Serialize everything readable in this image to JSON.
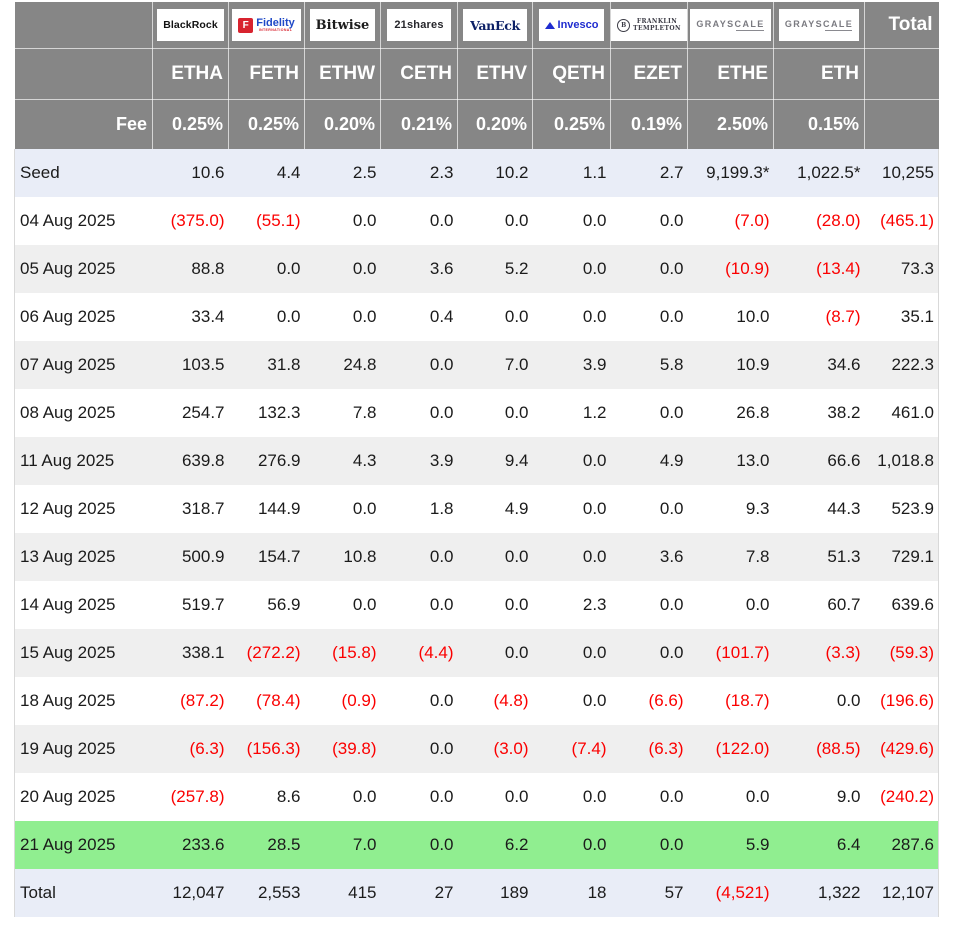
{
  "header": {
    "fee_label": "Fee",
    "total_label": "Total"
  },
  "columns": [
    {
      "provider": "BlackRock",
      "logo_text": "BlackRock",
      "ticker": "ETHA",
      "fee": "0.25%"
    },
    {
      "provider": "Fidelity",
      "logo_text": "Fidelity",
      "logo_initial": "F",
      "logo_sub": "INTERNATIONAL",
      "ticker": "FETH",
      "fee": "0.25%"
    },
    {
      "provider": "Bitwise",
      "logo_text": "Bitwise",
      "ticker": "ETHW",
      "fee": "0.20%"
    },
    {
      "provider": "21shares",
      "logo_text": "21shares",
      "ticker": "CETH",
      "fee": "0.21%"
    },
    {
      "provider": "VanEck",
      "logo_text": "VanEck",
      "ticker": "ETHV",
      "fee": "0.20%"
    },
    {
      "provider": "Invesco",
      "logo_text": "Invesco",
      "ticker": "QETH",
      "fee": "0.25%"
    },
    {
      "provider": "Franklin Templeton",
      "logo_line1": "FRANKLIN",
      "logo_line2": "TEMPLETON",
      "logo_seal": "B",
      "ticker": "EZET",
      "fee": "0.19%"
    },
    {
      "provider": "Grayscale",
      "logo_text": "GRAYSCALE",
      "ticker": "ETHE",
      "fee": "2.50%"
    },
    {
      "provider": "Grayscale",
      "logo_text": "GRAYSCALE",
      "ticker": "ETH",
      "fee": "0.15%"
    }
  ],
  "rows": [
    {
      "label": "Seed",
      "style": "seed",
      "values": [
        "10.6",
        "4.4",
        "2.5",
        "2.3",
        "10.2",
        "1.1",
        "2.7",
        "9,199.3*",
        "1,022.5*",
        "10,255"
      ]
    },
    {
      "label": "04 Aug 2025",
      "values": [
        "(375.0)",
        "(55.1)",
        "0.0",
        "0.0",
        "0.0",
        "0.0",
        "0.0",
        "(7.0)",
        "(28.0)",
        "(465.1)"
      ]
    },
    {
      "label": "05 Aug 2025",
      "values": [
        "88.8",
        "0.0",
        "0.0",
        "3.6",
        "5.2",
        "0.0",
        "0.0",
        "(10.9)",
        "(13.4)",
        "73.3"
      ]
    },
    {
      "label": "06 Aug 2025",
      "values": [
        "33.4",
        "0.0",
        "0.0",
        "0.4",
        "0.0",
        "0.0",
        "0.0",
        "10.0",
        "(8.7)",
        "35.1"
      ]
    },
    {
      "label": "07 Aug 2025",
      "values": [
        "103.5",
        "31.8",
        "24.8",
        "0.0",
        "7.0",
        "3.9",
        "5.8",
        "10.9",
        "34.6",
        "222.3"
      ]
    },
    {
      "label": "08 Aug 2025",
      "values": [
        "254.7",
        "132.3",
        "7.8",
        "0.0",
        "0.0",
        "1.2",
        "0.0",
        "26.8",
        "38.2",
        "461.0"
      ]
    },
    {
      "label": "11 Aug 2025",
      "values": [
        "639.8",
        "276.9",
        "4.3",
        "3.9",
        "9.4",
        "0.0",
        "4.9",
        "13.0",
        "66.6",
        "1,018.8"
      ]
    },
    {
      "label": "12 Aug 2025",
      "values": [
        "318.7",
        "144.9",
        "0.0",
        "1.8",
        "4.9",
        "0.0",
        "0.0",
        "9.3",
        "44.3",
        "523.9"
      ]
    },
    {
      "label": "13 Aug 2025",
      "values": [
        "500.9",
        "154.7",
        "10.8",
        "0.0",
        "0.0",
        "0.0",
        "3.6",
        "7.8",
        "51.3",
        "729.1"
      ]
    },
    {
      "label": "14 Aug 2025",
      "values": [
        "519.7",
        "56.9",
        "0.0",
        "0.0",
        "0.0",
        "2.3",
        "0.0",
        "0.0",
        "60.7",
        "639.6"
      ]
    },
    {
      "label": "15 Aug 2025",
      "values": [
        "338.1",
        "(272.2)",
        "(15.8)",
        "(4.4)",
        "0.0",
        "0.0",
        "0.0",
        "(101.7)",
        "(3.3)",
        "(59.3)"
      ]
    },
    {
      "label": "18 Aug 2025",
      "values": [
        "(87.2)",
        "(78.4)",
        "(0.9)",
        "0.0",
        "(4.8)",
        "0.0",
        "(6.6)",
        "(18.7)",
        "0.0",
        "(196.6)"
      ]
    },
    {
      "label": "19 Aug 2025",
      "values": [
        "(6.3)",
        "(156.3)",
        "(39.8)",
        "0.0",
        "(3.0)",
        "(7.4)",
        "(6.3)",
        "(122.0)",
        "(88.5)",
        "(429.6)"
      ]
    },
    {
      "label": "20 Aug 2025",
      "values": [
        "(257.8)",
        "8.6",
        "0.0",
        "0.0",
        "0.0",
        "0.0",
        "0.0",
        "0.0",
        "9.0",
        "(240.2)"
      ]
    },
    {
      "label": "21 Aug 2025",
      "style": "latest",
      "values": [
        "233.6",
        "28.5",
        "7.0",
        "0.0",
        "6.2",
        "0.0",
        "0.0",
        "5.9",
        "6.4",
        "287.6"
      ]
    },
    {
      "label": "Total",
      "style": "total",
      "values": [
        "12,047",
        "2,553",
        "415",
        "27",
        "189",
        "18",
        "57",
        "(4,521)",
        "1,322",
        "12,107"
      ]
    }
  ],
  "colors": {
    "header_bg": "#868686",
    "seed_total_bg": "#e9edf7",
    "stripe_bg": "#efefef",
    "latest_bg": "#90ee90",
    "negative": "#fb0000"
  }
}
